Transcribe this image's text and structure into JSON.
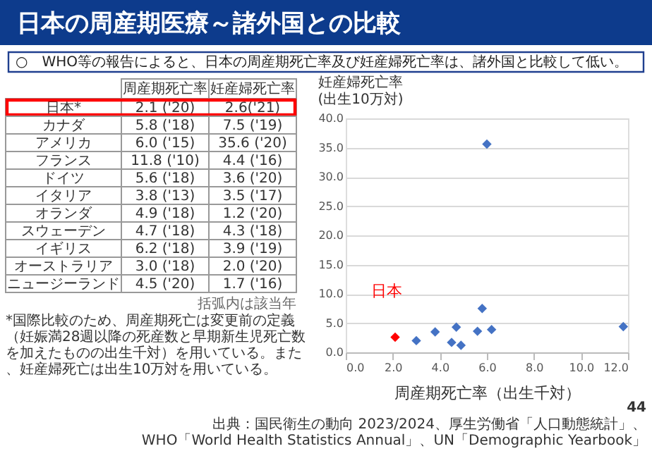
{
  "chart_data": [
    {
      "type": "other",
      "title": "日本の周産期医療～諸外国との比較",
      "subtitle": "○　WHO等の報告によると、日本の周産期死亡率及び妊産婦死亡率は、諸外国と比較して低い。",
      "annotations": [
        "周産期死亡率",
        "妊産婦死亡率",
        "日本*",
        "2.1 ('20)",
        "2.6('21)",
        "カナダ",
        "5.8 ('18)",
        "7.5 ('19)",
        "アメリカ",
        "6.0 ('15)",
        "35.6 ('20)",
        "フランス",
        "11.8 ('10)",
        "4.4 ('16)",
        "ドイツ",
        "5.6 ('18)",
        "3.6 ('20)",
        "イタリア",
        "3.8 ('13)",
        "3.5 ('17)",
        "オランダ",
        "4.9 ('18)",
        "1.2 ('20)",
        "スウェーデン",
        "4.7 ('18)",
        "4.3 ('18)",
        "イギリス",
        "6.2 ('18)",
        "3.9 ('19)",
        "オーストラリア",
        "3.0 ('18)",
        "2.0 ('20)",
        "ニュージーランド",
        "4.5 ('20)",
        "1.7 ('16)",
        "括弧内は該当年",
        "*国際比較のため、周産期死亡は変更前の定義（妊娠満28週以降の死産数と早期新生児死亡数を加えたものの出生千対）を用いている。また、妊産婦死亡は出生10万対を用いている。",
        "出典：国民衛生の動向 2023/2024、厚生労働省「人口動態統計」、WHO「World Health Statistics Annual」、UN「Demographic Yearbook」",
        "44"
      ]
    },
    {
      "type": "scatter",
      "xlabel": "周産期死亡率（出生千対）",
      "ylabel": "妊産婦死亡率\n(出生10万対)",
      "xlim": [
        0,
        12
      ],
      "xticks": [
        {
          "value": 0,
          "label": "0.0"
        },
        {
          "value": 2,
          "label": "2.0"
        },
        {
          "value": 4,
          "label": "4.0"
        },
        {
          "value": 6,
          "label": "6.0"
        },
        {
          "value": 8,
          "label": "8.0"
        },
        {
          "value": 10,
          "label": "10.0"
        },
        {
          "value": 12,
          "label": "12.0"
        }
      ],
      "ylim": [
        0,
        40
      ],
      "yticks": [
        {
          "value": 0,
          "label": "0.0"
        },
        {
          "value": 5,
          "label": "5.0"
        },
        {
          "value": 10,
          "label": "10.0"
        },
        {
          "value": 15,
          "label": "15.0"
        },
        {
          "value": 20,
          "label": "20.0"
        },
        {
          "value": 25,
          "label": "25.0"
        },
        {
          "value": 30,
          "label": "30.0"
        },
        {
          "value": 35,
          "label": "35.0"
        },
        {
          "value": 40,
          "label": "40.0"
        }
      ],
      "grid": "y",
      "marker": "diamond",
      "series": [
        {
          "name": "日本",
          "color": "#ff0000",
          "x": [
            2.1
          ],
          "values": [
            2.6
          ]
        },
        {
          "color": "#4472c4",
          "x": [
            5.8,
            6.0,
            11.8,
            5.6,
            3.8,
            4.9,
            4.7,
            6.2,
            3.0,
            4.5
          ],
          "values": [
            7.5,
            35.6,
            4.4,
            3.6,
            3.5,
            1.2,
            4.3,
            3.9,
            2.0,
            1.7
          ]
        }
      ]
    }
  ]
}
